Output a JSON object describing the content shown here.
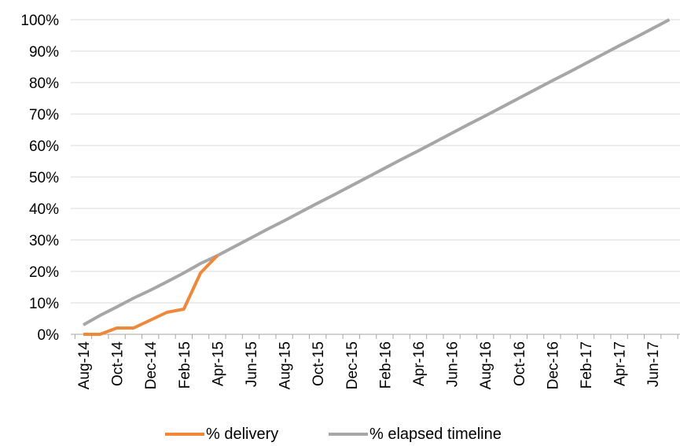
{
  "chart_data": {
    "type": "line",
    "title": "",
    "xlabel": "",
    "ylabel": "",
    "ylim": [
      0,
      100
    ],
    "y_ticks": [
      "0%",
      "10%",
      "20%",
      "30%",
      "40%",
      "50%",
      "60%",
      "70%",
      "80%",
      "90%",
      "100%"
    ],
    "x_ticks": [
      "Aug-14",
      "Oct-14",
      "Dec-14",
      "Feb-15",
      "Apr-15",
      "Jun-15",
      "Aug-15",
      "Oct-15",
      "Dec-15",
      "Feb-16",
      "Apr-16",
      "Jun-16",
      "Aug-16",
      "Oct-16",
      "Dec-16",
      "Feb-17",
      "Apr-17",
      "Jun-17"
    ],
    "grid": true,
    "legend_position": "bottom",
    "series": [
      {
        "name": "% delivery",
        "color": "#F0883A",
        "x": [
          "Aug-14",
          "Sep-14",
          "Oct-14",
          "Nov-14",
          "Dec-14",
          "Jan-15",
          "Feb-15",
          "Mar-15",
          "Apr-15"
        ],
        "values": [
          0,
          0,
          2,
          2,
          4.5,
          7,
          8,
          19.5,
          25
        ]
      },
      {
        "name": "% elapsed timeline",
        "color": "#A6A6A6",
        "x": [
          "Aug-14",
          "Sep-14",
          "Oct-14",
          "Nov-14",
          "Dec-14",
          "Jan-15",
          "Feb-15",
          "Mar-15",
          "Apr-15",
          "May-15",
          "Jun-15",
          "Jul-15",
          "Aug-15",
          "Sep-15",
          "Oct-15",
          "Nov-15",
          "Dec-15",
          "Jan-16",
          "Feb-16",
          "Mar-16",
          "Apr-16",
          "May-16",
          "Jun-16",
          "Jul-16",
          "Aug-16",
          "Sep-16",
          "Oct-16",
          "Nov-16",
          "Dec-16",
          "Jan-17",
          "Feb-17",
          "Mar-17",
          "Apr-17",
          "May-17",
          "Jun-17",
          "Jul-17"
        ],
        "values": [
          3,
          6,
          8.7,
          11.5,
          14,
          16.7,
          19.5,
          22.5,
          25,
          27.8,
          30.6,
          33.4,
          36.1,
          38.9,
          41.7,
          44.4,
          47.2,
          50,
          52.8,
          55.6,
          58.3,
          61.1,
          63.9,
          66.7,
          69.4,
          72.2,
          75,
          77.8,
          80.6,
          83.3,
          86.1,
          88.9,
          91.7,
          94.4,
          97.2,
          100
        ]
      }
    ]
  }
}
